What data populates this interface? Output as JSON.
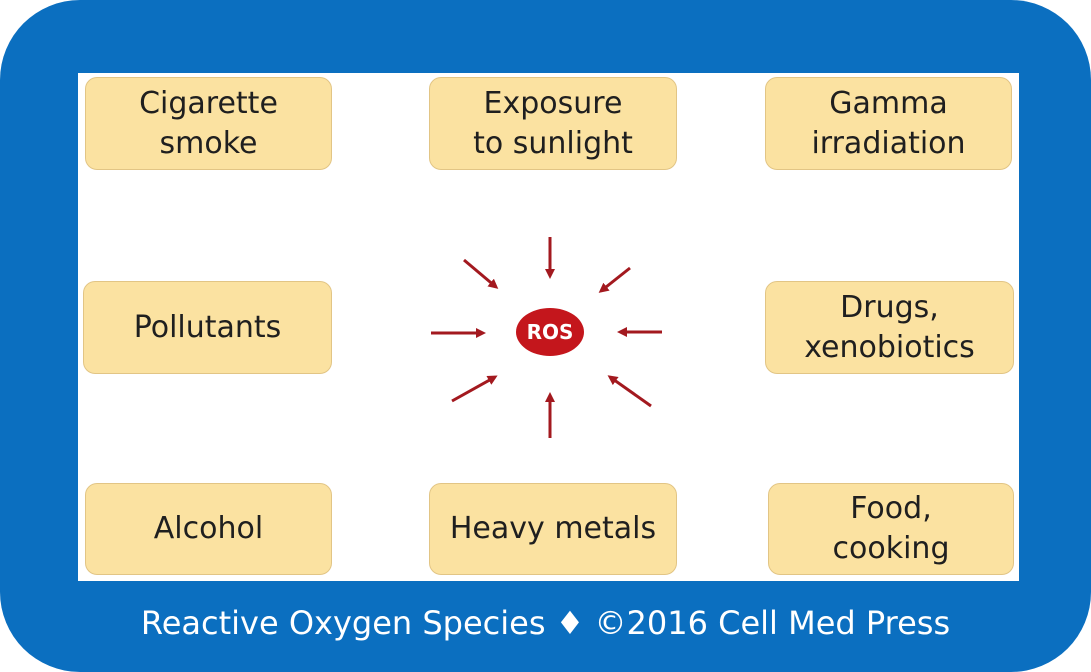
{
  "diagram": {
    "center_label": "ROS",
    "sources": [
      {
        "id": "cigarette",
        "label": "Cigarette\nsmoke"
      },
      {
        "id": "sunlight",
        "label": "Exposure\nto sunlight"
      },
      {
        "id": "gamma",
        "label": "Gamma\nirradiation"
      },
      {
        "id": "pollutants",
        "label": "Pollutants"
      },
      {
        "id": "drugs",
        "label": "Drugs,\nxenobiotics"
      },
      {
        "id": "alcohol",
        "label": "Alcohol"
      },
      {
        "id": "metals",
        "label": "Heavy metals"
      },
      {
        "id": "food",
        "label": "Food,\ncooking"
      }
    ]
  },
  "footer": {
    "caption": "Reactive Oxygen Species ♦ ©2016 Cell Med Press"
  },
  "colors": {
    "frame": "#0b6fc0",
    "box_fill": "#fbe2a1",
    "arrow": "#a3191f",
    "ros_fill": "#c4161c"
  }
}
